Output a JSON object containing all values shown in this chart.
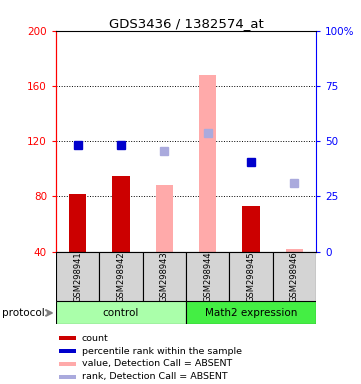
{
  "title": "GDS3436 / 1382574_at",
  "samples": [
    "GSM298941",
    "GSM298942",
    "GSM298943",
    "GSM298944",
    "GSM298945",
    "GSM298946"
  ],
  "group_labels": [
    "control",
    "Math2 expression"
  ],
  "group_colors": [
    "#aaffaa",
    "#44ee44"
  ],
  "ylim_left": [
    40,
    200
  ],
  "ylim_right": [
    0,
    100
  ],
  "yticks_left": [
    40,
    80,
    120,
    160,
    200
  ],
  "yticks_right": [
    0,
    25,
    50,
    75,
    100
  ],
  "ytick_labels_right": [
    "0",
    "25",
    "50",
    "75",
    "100%"
  ],
  "dotted_lines": [
    80,
    120,
    160
  ],
  "bar_color_present": "#cc0000",
  "bar_color_absent": "#ffaaaa",
  "dot_color_present": "#0000cc",
  "dot_color_absent": "#aaaadd",
  "count_values": [
    82,
    95,
    null,
    null,
    73,
    null
  ],
  "count_absent_values": [
    null,
    null,
    88,
    168,
    null,
    42
  ],
  "rank_values": [
    117,
    117,
    null,
    null,
    105,
    null
  ],
  "rank_absent_values": [
    null,
    null,
    113,
    126,
    null,
    90
  ],
  "protocol_label": "protocol",
  "legend_items": [
    {
      "color": "#cc0000",
      "label": "count"
    },
    {
      "color": "#0000cc",
      "label": "percentile rank within the sample"
    },
    {
      "color": "#ffaaaa",
      "label": "value, Detection Call = ABSENT"
    },
    {
      "color": "#aaaadd",
      "label": "rank, Detection Call = ABSENT"
    }
  ]
}
